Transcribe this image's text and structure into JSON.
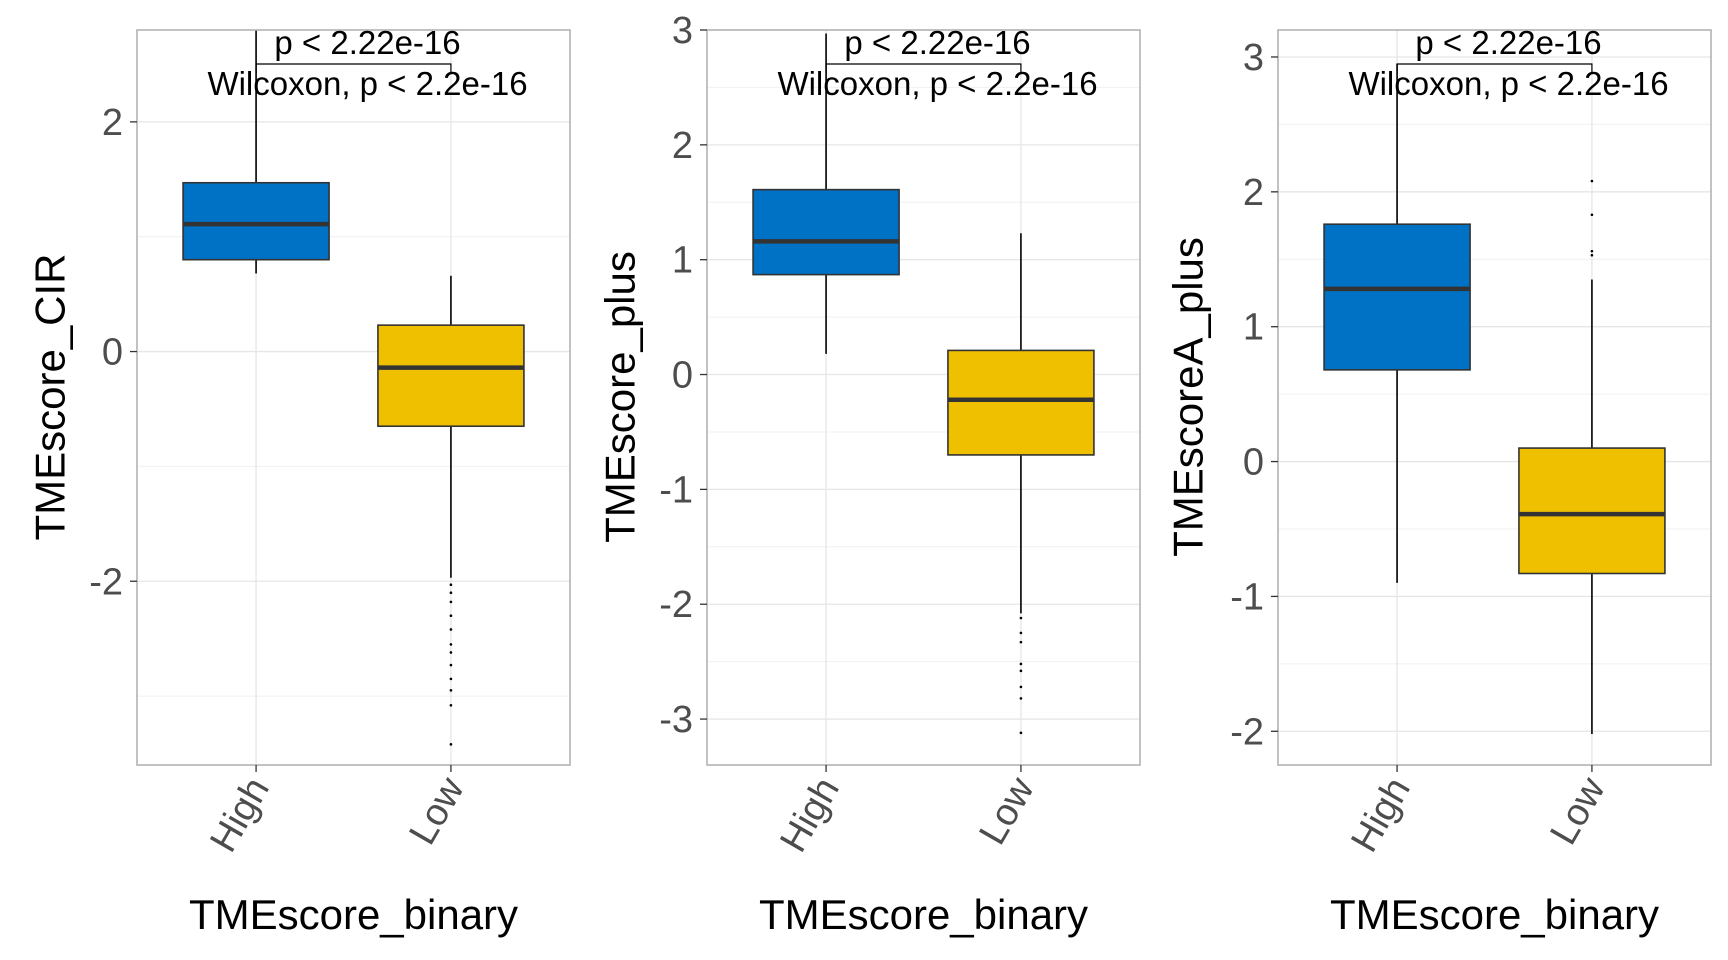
{
  "colors": {
    "High": "#0072C6",
    "Low": "#EFC000",
    "grid": "#e6e6e6",
    "frame": "#b3b3b3"
  },
  "chart_data": [
    {
      "type": "box",
      "categories": [
        "High",
        "Low"
      ],
      "xlabel": "TMEscore_binary",
      "ylabel": "TMEscore_CIR",
      "ylim": [
        -3.6,
        2.8
      ],
      "yticks": [
        -2,
        0,
        2
      ],
      "grid": true,
      "annotation": {
        "p_label": "p < 2.22e-16",
        "test_label": "Wilcoxon, p < 2.2e-16"
      },
      "boxes": [
        {
          "group": "High",
          "whisker_low": 0.68,
          "q1": 0.8,
          "median": 1.11,
          "q3": 1.47,
          "whisker_high": 2.8,
          "outliers": []
        },
        {
          "group": "Low",
          "whisker_low": -1.97,
          "q1": -0.65,
          "median": -0.14,
          "q3": 0.23,
          "whisker_high": 0.66,
          "outliers": [
            -2.03,
            -2.1,
            -2.18,
            -2.3,
            -2.42,
            -2.55,
            -2.62,
            -2.73,
            -2.85,
            -2.95,
            -3.08,
            -3.42
          ]
        }
      ]
    },
    {
      "type": "box",
      "categories": [
        "High",
        "Low"
      ],
      "xlabel": "TMEscore_binary",
      "ylabel": "TMEscore_plus",
      "ylim": [
        -3.4,
        3.0
      ],
      "yticks": [
        -3,
        -2,
        -1,
        0,
        1,
        2,
        3
      ],
      "grid": true,
      "annotation": {
        "p_label": "p < 2.22e-16",
        "test_label": "Wilcoxon, p < 2.2e-16"
      },
      "boxes": [
        {
          "group": "High",
          "whisker_low": 0.18,
          "q1": 0.87,
          "median": 1.16,
          "q3": 1.61,
          "whisker_high": 2.97,
          "outliers": []
        },
        {
          "group": "Low",
          "whisker_low": -2.08,
          "q1": -0.7,
          "median": -0.22,
          "q3": 0.21,
          "whisker_high": 1.23,
          "outliers": [
            -2.12,
            -2.25,
            -2.33,
            -2.52,
            -2.58,
            -2.72,
            -2.82,
            -3.12
          ]
        }
      ]
    },
    {
      "type": "box",
      "categories": [
        "High",
        "Low"
      ],
      "xlabel": "TMEscore_binary",
      "ylabel": "TMEscoreA_plus",
      "ylim": [
        -2.25,
        3.2
      ],
      "yticks": [
        -2,
        -1,
        0,
        1,
        2,
        3
      ],
      "grid": true,
      "annotation": {
        "p_label": "p < 2.22e-16",
        "test_label": "Wilcoxon, p < 2.2e-16"
      },
      "boxes": [
        {
          "group": "High",
          "whisker_low": -0.9,
          "q1": 0.68,
          "median": 1.28,
          "q3": 1.76,
          "whisker_high": 2.95,
          "outliers": []
        },
        {
          "group": "Low",
          "whisker_low": -2.02,
          "q1": -0.83,
          "median": -0.39,
          "q3": 0.1,
          "whisker_high": 1.35,
          "outliers": [
            1.53,
            1.56,
            1.83,
            2.08
          ]
        }
      ]
    }
  ]
}
